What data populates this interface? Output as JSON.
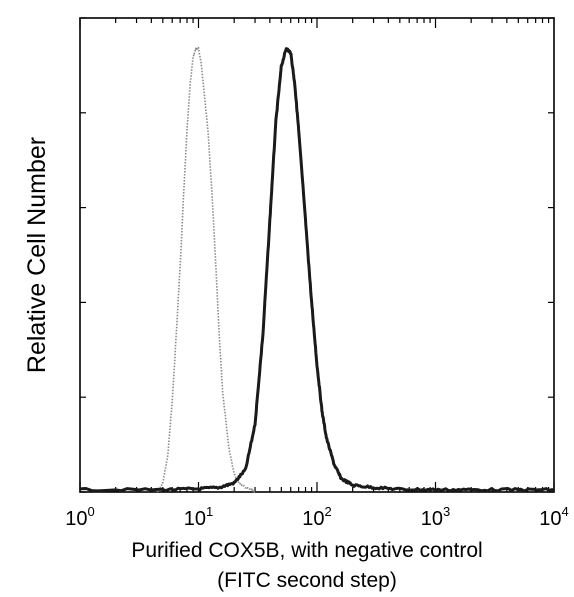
{
  "chart_data": {
    "type": "line",
    "title": "",
    "xlabel_line1": "Purified COX5B, with negative control",
    "xlabel_line2": "(FITC second step)",
    "ylabel": "Relative Cell Number",
    "x_scale": "log",
    "xlim": [
      1,
      10000
    ],
    "ylim": [
      0,
      100
    ],
    "x_ticks": [
      {
        "base": "10",
        "exp": "0",
        "value": 1
      },
      {
        "base": "10",
        "exp": "1",
        "value": 10
      },
      {
        "base": "10",
        "exp": "2",
        "value": 100
      },
      {
        "base": "10",
        "exp": "3",
        "value": 1000
      },
      {
        "base": "10",
        "exp": "4",
        "value": 10000
      }
    ],
    "y_ticks_count": 5,
    "grid": false,
    "legend": "none",
    "series": [
      {
        "style": "dotted",
        "color": "#8a8a8a",
        "x": [
          4.5,
          5.0,
          5.5,
          6.0,
          6.5,
          7.0,
          7.5,
          8.0,
          8.5,
          9.0,
          9.5,
          10.0,
          10.5,
          11.0,
          12.0,
          13.0,
          14.0,
          15.0,
          16.0,
          18.0,
          20.0,
          22.0,
          25.0,
          28.0,
          30.0
        ],
        "y": [
          0,
          2,
          8,
          20,
          35,
          50,
          66,
          80,
          90,
          96,
          98,
          98,
          95,
          90,
          80,
          66,
          50,
          34,
          22,
          10,
          4,
          2,
          1,
          0.5,
          0
        ]
      },
      {
        "style": "solid",
        "color": "#1a1a1a",
        "x": [
          1,
          5,
          10,
          15,
          20,
          25,
          30,
          35,
          40,
          45,
          50,
          55,
          60,
          65,
          70,
          80,
          90,
          100,
          110,
          120,
          140,
          160,
          200,
          300,
          500,
          1000,
          2000,
          5000,
          10000
        ],
        "y": [
          0.5,
          0.5,
          0.7,
          1,
          2,
          5,
          15,
          35,
          60,
          82,
          94,
          98,
          97,
          90,
          80,
          60,
          42,
          28,
          18,
          12,
          6,
          3,
          1.5,
          1,
          0.6,
          0.5,
          0.5,
          0.5,
          0.5
        ]
      }
    ]
  }
}
